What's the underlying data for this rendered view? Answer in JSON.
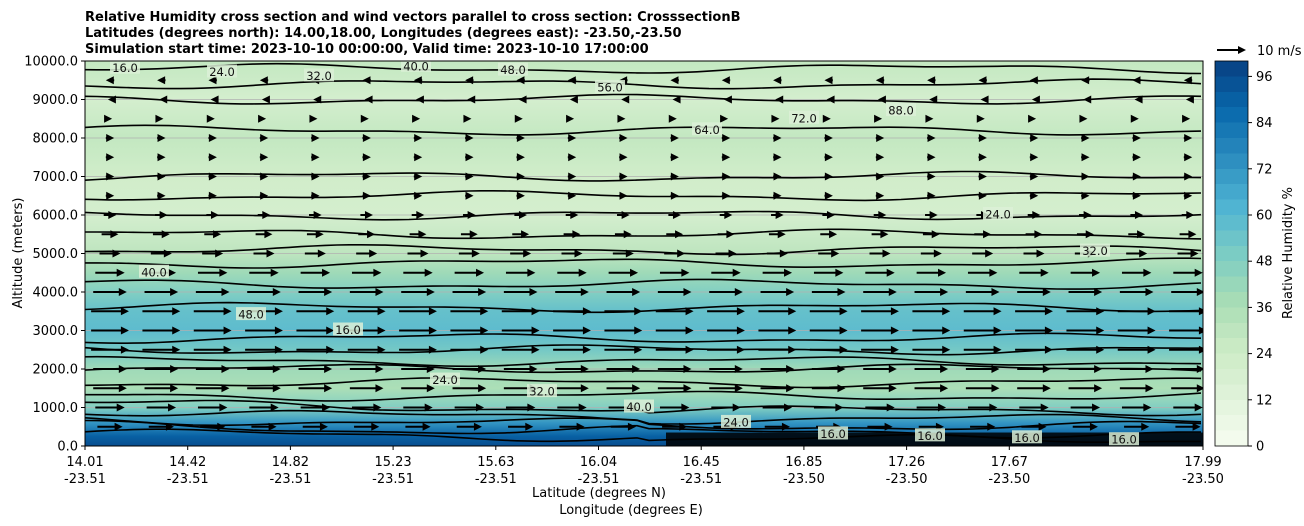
{
  "chart_data": {
    "type": "heatmap",
    "title_lines": [
      "Relative Humidity cross section and wind vectors parallel to cross section: CrosssectionB",
      "Latitudes (degrees north): 14.00,18.00, Longitudes (degrees east): -23.50,-23.50",
      "Simulation start time: 2023-10-10 00:00:00, Valid time: 2023-10-10 17:00:00"
    ],
    "ylabel": "Altitude (meters)",
    "xlabel_1": "Latitude (degrees N)",
    "xlabel_2": "Longitude (degrees E)",
    "ylim": [
      0,
      10000
    ],
    "y_ticks": [
      "0.0",
      "1000.0",
      "2000.0",
      "3000.0",
      "4000.0",
      "5000.0",
      "6000.0",
      "7000.0",
      "8000.0",
      "9000.0",
      "10000.0"
    ],
    "x_ticks_lat": [
      "14.01",
      "14.42",
      "14.82",
      "15.23",
      "15.63",
      "16.04",
      "16.45",
      "16.85",
      "17.26",
      "17.67",
      "17.99"
    ],
    "x_ticks_lon": [
      "-23.51",
      "-23.51",
      "-23.51",
      "-23.51",
      "-23.51",
      "-23.51",
      "-23.51",
      "-23.50",
      "-23.50",
      "-23.50",
      "-23.50"
    ],
    "grid": true,
    "colorbar": {
      "label": "Relative Humidity %",
      "ticks": [
        "0",
        "12",
        "24",
        "36",
        "48",
        "60",
        "72",
        "84",
        "96"
      ],
      "range": [
        0,
        100
      ],
      "colormap": "GnBu"
    },
    "quiver_key": "10 m/s",
    "rh_profile": [
      {
        "altitude": 0,
        "rh": 96
      },
      {
        "altitude": 250,
        "rh": 90
      },
      {
        "altitude": 600,
        "rh": 72
      },
      {
        "altitude": 1000,
        "rh": 48
      },
      {
        "altitude": 1500,
        "rh": 36
      },
      {
        "altitude": 2000,
        "rh": 40
      },
      {
        "altitude": 2500,
        "rh": 52
      },
      {
        "altitude": 3000,
        "rh": 58
      },
      {
        "altitude": 3500,
        "rh": 56
      },
      {
        "altitude": 4000,
        "rh": 48
      },
      {
        "altitude": 4500,
        "rh": 40
      },
      {
        "altitude": 5000,
        "rh": 30
      },
      {
        "altitude": 6000,
        "rh": 20
      },
      {
        "altitude": 7000,
        "rh": 22
      },
      {
        "altitude": 8000,
        "rh": 28
      },
      {
        "altitude": 9000,
        "rh": 20
      },
      {
        "altitude": 10000,
        "rh": 28
      }
    ],
    "contour_labels": [
      "16.0",
      "24.0",
      "32.0",
      "40.0",
      "48.0",
      "56.0",
      "64.0",
      "72.0",
      "88.0",
      "24.0",
      "32.0",
      "40.0",
      "48.0",
      "16.0",
      "24.0",
      "32.0",
      "40.0",
      "24.0",
      "16.0",
      "16.0",
      "16.0",
      "16.0"
    ],
    "wind_levels": [
      {
        "altitude": 500,
        "speed": 6
      },
      {
        "altitude": 1000,
        "speed": 7
      },
      {
        "altitude": 1500,
        "speed": 8
      },
      {
        "altitude": 2000,
        "speed": 8
      },
      {
        "altitude": 2500,
        "speed": 9
      },
      {
        "altitude": 3000,
        "speed": 9
      },
      {
        "altitude": 3500,
        "speed": 9
      },
      {
        "altitude": 4000,
        "speed": 8
      },
      {
        "altitude": 4500,
        "speed": 7
      },
      {
        "altitude": 5000,
        "speed": 5
      },
      {
        "altitude": 5500,
        "speed": 4
      },
      {
        "altitude": 6000,
        "speed": 3
      },
      {
        "altitude": 6500,
        "speed": 2
      },
      {
        "altitude": 7000,
        "speed": 2
      },
      {
        "altitude": 7500,
        "speed": 2
      },
      {
        "altitude": 8000,
        "speed": 2
      },
      {
        "altitude": 8500,
        "speed": 1
      },
      {
        "altitude": 9000,
        "speed": -1
      },
      {
        "altitude": 9500,
        "speed": -2
      }
    ]
  }
}
